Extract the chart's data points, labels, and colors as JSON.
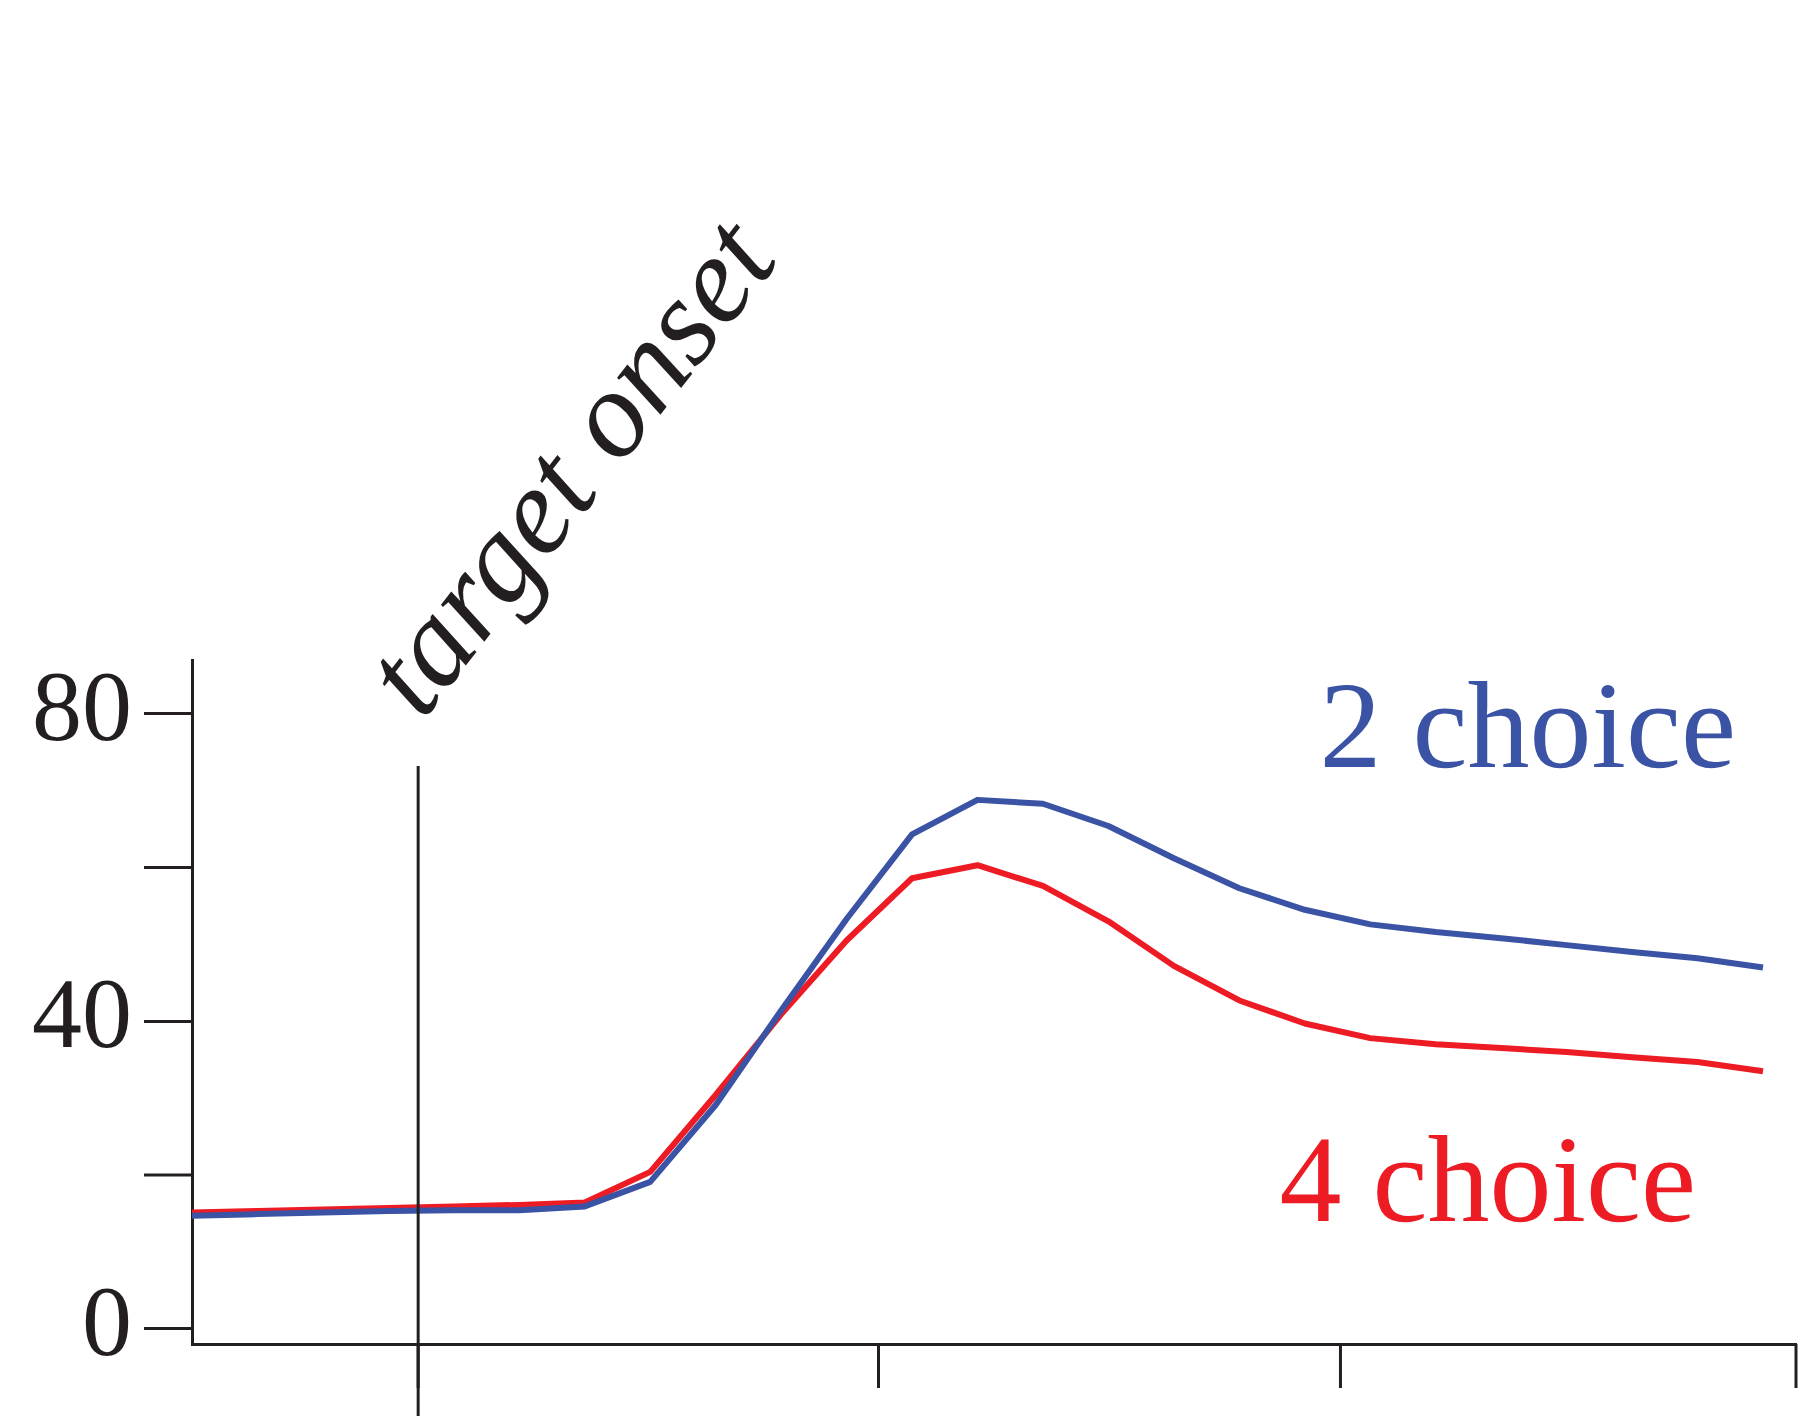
{
  "chart_data": {
    "type": "line",
    "categories": [
      null,
      null,
      null,
      null,
      null,
      null,
      null,
      null,
      null,
      null,
      null,
      null,
      null,
      null,
      null,
      null,
      null,
      null,
      null,
      null,
      null,
      null,
      null,
      null,
      null
    ],
    "series": [
      {
        "name": "2 choice",
        "color": "#3a53a4",
        "values": [
          14.7,
          14.9,
          15.1,
          15.3,
          15.4,
          15.4,
          15.9,
          19.1,
          29.1,
          41.4,
          53.3,
          64.3,
          68.8,
          68.3,
          65.4,
          61.2,
          57.3,
          54.5,
          52.6,
          51.6,
          50.8,
          49.9,
          49.0,
          48.2,
          47.0
        ]
      },
      {
        "name": "4 choice",
        "color": "#ed1c24",
        "values": [
          15.1,
          15.3,
          15.5,
          15.7,
          15.9,
          16.1,
          16.4,
          20.4,
          30.4,
          40.9,
          50.5,
          58.6,
          60.3,
          57.6,
          53.0,
          47.2,
          42.7,
          39.7,
          37.8,
          37.0,
          36.5,
          36.0,
          35.3,
          34.7,
          33.5
        ]
      }
    ],
    "ylim": [
      -2,
      87
    ],
    "yticks": [
      0,
      40,
      80
    ],
    "annotations": [
      "target onset"
    ],
    "grid": false,
    "legend": false,
    "marker": "none",
    "line_style": "solid",
    "tick_labels": "y"
  }
}
